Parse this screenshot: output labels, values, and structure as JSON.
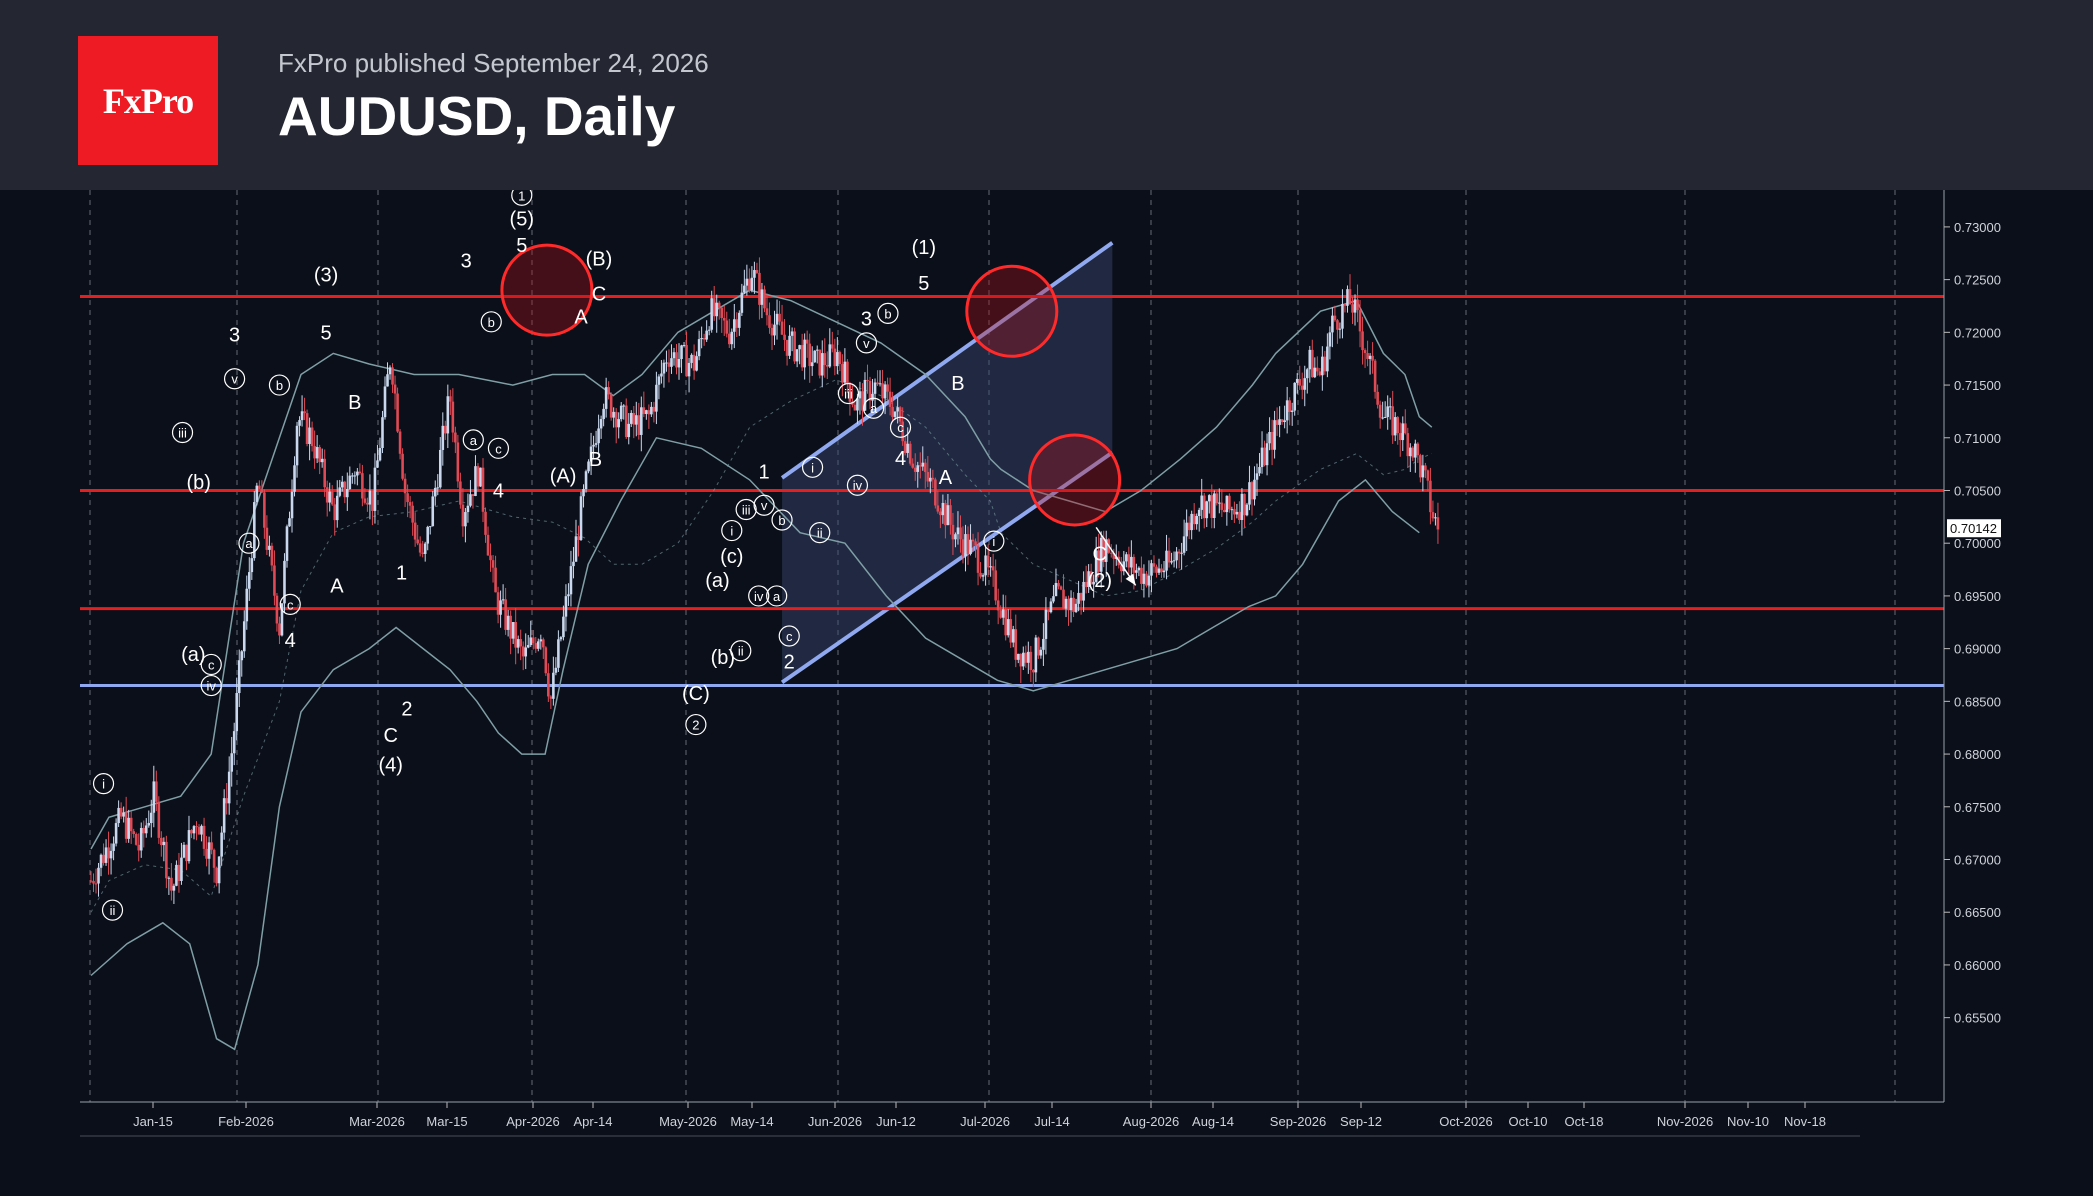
{
  "header": {
    "logo_text": "FxPro",
    "published": "FxPro published September 24, 2026",
    "title": "AUDUSD, Daily"
  },
  "colors": {
    "background": "#0b0f19",
    "header_bg": "#242731",
    "logo_red": "#ee1a24",
    "resistance_red": "#e31f1f",
    "channel_blue": "#8fa8ef",
    "bollinger": "#7f9ea6",
    "candle_up": "#c9d8ee",
    "candle_down": "#e04a55"
  },
  "chart_data": {
    "type": "candlestick",
    "symbol": "AUDUSD",
    "timeframe": "Daily",
    "ylim": [
      0.647,
      0.7335
    ],
    "y_ticks": [
      "0.73000",
      "0.72500",
      "0.72000",
      "0.71500",
      "0.71000",
      "0.70500",
      "0.70000",
      "0.69500",
      "0.69000",
      "0.68500",
      "0.68000",
      "0.67500",
      "0.67000",
      "0.66500",
      "0.66000",
      "0.65500"
    ],
    "current_price": "0.70142",
    "x_ticks": [
      "Jan-15",
      "Feb-2026",
      "Mar-2026",
      "Mar-15",
      "Apr-2026",
      "Apr-14",
      "May-2026",
      "May-14",
      "Jun-2026",
      "Jun-12",
      "Jul-2026",
      "Jul-14",
      "Aug-2026",
      "Aug-14",
      "Sep-2026",
      "Sep-12",
      "Oct-2026",
      "Oct-10",
      "Oct-18",
      "Nov-2026",
      "Nov-10",
      "Nov-18"
    ],
    "horizontal_levels": [
      {
        "price": 0.7234,
        "color": "red"
      },
      {
        "price": 0.705,
        "color": "red"
      },
      {
        "price": 0.6938,
        "color": "red"
      },
      {
        "price": 0.6865,
        "color": "blue"
      }
    ],
    "path": [
      [
        5,
        0.668
      ],
      [
        22,
        0.674
      ],
      [
        32,
        0.671
      ],
      [
        40,
        0.676
      ],
      [
        50,
        0.667
      ],
      [
        64,
        0.674
      ],
      [
        75,
        0.669
      ],
      [
        84,
        0.681
      ],
      [
        98,
        0.706
      ],
      [
        110,
        0.692
      ],
      [
        120,
        0.712
      ],
      [
        128,
        0.71
      ],
      [
        140,
        0.703
      ],
      [
        152,
        0.707
      ],
      [
        162,
        0.704
      ],
      [
        172,
        0.718
      ],
      [
        180,
        0.705
      ],
      [
        190,
        0.698
      ],
      [
        205,
        0.714
      ],
      [
        212,
        0.703
      ],
      [
        221,
        0.707
      ],
      [
        230,
        0.695
      ],
      [
        246,
        0.689
      ],
      [
        256,
        0.692
      ],
      [
        261,
        0.685
      ],
      [
        278,
        0.703
      ],
      [
        290,
        0.714
      ],
      [
        305,
        0.711
      ],
      [
        316,
        0.712
      ],
      [
        326,
        0.718
      ],
      [
        341,
        0.717
      ],
      [
        350,
        0.722
      ],
      [
        361,
        0.72
      ],
      [
        373,
        0.726
      ],
      [
        381,
        0.722
      ],
      [
        393,
        0.719
      ],
      [
        410,
        0.717
      ],
      [
        421,
        0.718
      ],
      [
        431,
        0.713
      ],
      [
        441,
        0.715
      ],
      [
        452,
        0.713
      ],
      [
        463,
        0.708
      ],
      [
        475,
        0.705
      ],
      [
        486,
        0.701
      ],
      [
        498,
        0.699
      ],
      [
        508,
        0.696
      ],
      [
        520,
        0.69
      ],
      [
        530,
        0.689
      ],
      [
        543,
        0.695
      ],
      [
        553,
        0.694
      ],
      [
        570,
        0.7
      ],
      [
        582,
        0.698
      ],
      [
        592,
        0.697
      ],
      [
        607,
        0.698
      ],
      [
        622,
        0.704
      ],
      [
        638,
        0.703
      ],
      [
        648,
        0.704
      ],
      [
        668,
        0.712
      ],
      [
        684,
        0.717
      ],
      [
        690,
        0.716
      ],
      [
        697,
        0.721
      ],
      [
        707,
        0.723
      ],
      [
        716,
        0.718
      ],
      [
        725,
        0.712
      ],
      [
        733,
        0.711
      ],
      [
        742,
        0.709
      ],
      [
        748,
        0.706
      ],
      [
        752,
        0.703
      ],
      [
        756,
        0.701
      ]
    ],
    "bands": {
      "upper": [
        [
          5,
          0.671
        ],
        [
          15,
          0.674
        ],
        [
          35,
          0.675
        ],
        [
          55,
          0.676
        ],
        [
          72,
          0.68
        ],
        [
          90,
          0.7
        ],
        [
          110,
          0.71
        ],
        [
          122,
          0.716
        ],
        [
          140,
          0.718
        ],
        [
          160,
          0.717
        ],
        [
          185,
          0.716
        ],
        [
          210,
          0.716
        ],
        [
          240,
          0.715
        ],
        [
          262,
          0.716
        ],
        [
          280,
          0.716
        ],
        [
          296,
          0.714
        ],
        [
          312,
          0.716
        ],
        [
          332,
          0.72
        ],
        [
          352,
          0.722
        ],
        [
          372,
          0.724
        ],
        [
          395,
          0.723
        ],
        [
          420,
          0.721
        ],
        [
          445,
          0.719
        ],
        [
          470,
          0.716
        ],
        [
          492,
          0.712
        ],
        [
          506,
          0.708
        ],
        [
          512,
          0.707
        ],
        [
          530,
          0.705
        ],
        [
          550,
          0.704
        ],
        [
          570,
          0.703
        ],
        [
          590,
          0.705
        ],
        [
          612,
          0.708
        ],
        [
          632,
          0.711
        ],
        [
          652,
          0.715
        ],
        [
          665,
          0.718
        ],
        [
          690,
          0.722
        ],
        [
          710,
          0.723
        ],
        [
          725,
          0.718
        ],
        [
          737,
          0.716
        ],
        [
          745,
          0.712
        ],
        [
          752,
          0.711
        ]
      ],
      "lower": [
        [
          5,
          0.659
        ],
        [
          25,
          0.662
        ],
        [
          45,
          0.664
        ],
        [
          60,
          0.662
        ],
        [
          75,
          0.653
        ],
        [
          85,
          0.652
        ],
        [
          98,
          0.66
        ],
        [
          110,
          0.675
        ],
        [
          122,
          0.684
        ],
        [
          140,
          0.688
        ],
        [
          160,
          0.69
        ],
        [
          175,
          0.692
        ],
        [
          190,
          0.69
        ],
        [
          205,
          0.688
        ],
        [
          220,
          0.685
        ],
        [
          232,
          0.682
        ],
        [
          245,
          0.68
        ],
        [
          258,
          0.68
        ],
        [
          268,
          0.688
        ],
        [
          282,
          0.698
        ],
        [
          300,
          0.704
        ],
        [
          320,
          0.71
        ],
        [
          345,
          0.709
        ],
        [
          372,
          0.706
        ],
        [
          400,
          0.701
        ],
        [
          425,
          0.7
        ],
        [
          448,
          0.695
        ],
        [
          470,
          0.691
        ],
        [
          490,
          0.689
        ],
        [
          510,
          0.687
        ],
        [
          530,
          0.686
        ],
        [
          550,
          0.687
        ],
        [
          570,
          0.688
        ],
        [
          590,
          0.689
        ],
        [
          610,
          0.69
        ],
        [
          630,
          0.692
        ],
        [
          650,
          0.694
        ],
        [
          665,
          0.695
        ],
        [
          680,
          0.698
        ],
        [
          700,
          0.704
        ],
        [
          715,
          0.706
        ],
        [
          730,
          0.703
        ],
        [
          745,
          0.701
        ]
      ]
    },
    "channel": {
      "upper": [
        [
          390,
          0.7062
        ],
        [
          574,
          0.7285
        ]
      ],
      "lower": [
        [
          390,
          0.6868
        ],
        [
          574,
          0.7086
        ]
      ],
      "fill_end": [
        [
          574,
          0.7285
        ],
        [
          574,
          0.7086
        ]
      ]
    },
    "forecast_arrow": [
      [
        565,
        0.7015
      ],
      [
        587,
        0.696
      ]
    ],
    "circles": [
      {
        "x": 259,
        "y": 0.724,
        "r": 36
      },
      {
        "x": 518,
        "y": 0.722,
        "r": 36
      },
      {
        "x": 553,
        "y": 0.706,
        "r": 36
      }
    ],
    "wave_labels": [
      {
        "text": "i",
        "x": 12,
        "y": 0.6772,
        "circled": true
      },
      {
        "text": "ii",
        "x": 17,
        "y": 0.6652,
        "circled": true
      },
      {
        "text": "iii",
        "x": 56,
        "y": 0.7105,
        "circled": true
      },
      {
        "text": "(b)",
        "x": 65,
        "y": 0.7058,
        "circled": false
      },
      {
        "text": "(a)",
        "x": 62,
        "y": 0.6895,
        "circled": false
      },
      {
        "text": "c",
        "x": 72,
        "y": 0.6885,
        "circled": true
      },
      {
        "text": "iv",
        "x": 72,
        "y": 0.6865,
        "circled": true
      },
      {
        "text": "3",
        "x": 85,
        "y": 0.7198,
        "circled": false
      },
      {
        "text": "v",
        "x": 85,
        "y": 0.7156,
        "circled": true
      },
      {
        "text": "b",
        "x": 110,
        "y": 0.715,
        "circled": true
      },
      {
        "text": "a",
        "x": 93,
        "y": 0.7,
        "circled": true
      },
      {
        "text": "(3)",
        "x": 136,
        "y": 0.7255,
        "circled": false
      },
      {
        "text": "5",
        "x": 136,
        "y": 0.72,
        "circled": false
      },
      {
        "text": "B",
        "x": 152,
        "y": 0.7134,
        "circled": false
      },
      {
        "text": "A",
        "x": 142,
        "y": 0.696,
        "circled": false
      },
      {
        "text": "c",
        "x": 116,
        "y": 0.6942,
        "circled": true
      },
      {
        "text": "4",
        "x": 116,
        "y": 0.6908,
        "circled": false
      },
      {
        "text": "1",
        "x": 178,
        "y": 0.6972,
        "circled": false
      },
      {
        "text": "2",
        "x": 181,
        "y": 0.6843,
        "circled": false
      },
      {
        "text": "C",
        "x": 172,
        "y": 0.6818,
        "circled": false
      },
      {
        "text": "(4)",
        "x": 172,
        "y": 0.679,
        "circled": false
      },
      {
        "text": "3",
        "x": 214,
        "y": 0.7268,
        "circled": false
      },
      {
        "text": "b",
        "x": 228,
        "y": 0.721,
        "circled": true
      },
      {
        "text": "a",
        "x": 218,
        "y": 0.7098,
        "circled": true
      },
      {
        "text": "c",
        "x": 232,
        "y": 0.709,
        "circled": true
      },
      {
        "text": "4",
        "x": 232,
        "y": 0.705,
        "circled": false
      },
      {
        "text": "1",
        "x": 245,
        "y": 0.733,
        "circled": true
      },
      {
        "text": "(5)",
        "x": 245,
        "y": 0.7308,
        "circled": false
      },
      {
        "text": "5",
        "x": 245,
        "y": 0.7283,
        "circled": false
      },
      {
        "text": "(B)",
        "x": 288,
        "y": 0.727,
        "circled": false
      },
      {
        "text": "C",
        "x": 288,
        "y": 0.7237,
        "circled": false
      },
      {
        "text": "A",
        "x": 278,
        "y": 0.7215,
        "circled": false
      },
      {
        "text": "B",
        "x": 286,
        "y": 0.708,
        "circled": false
      },
      {
        "text": "(A)",
        "x": 268,
        "y": 0.7064,
        "circled": false
      },
      {
        "text": "(C)",
        "x": 342,
        "y": 0.6858,
        "circled": false
      },
      {
        "text": "2",
        "x": 342,
        "y": 0.6828,
        "circled": true
      },
      {
        "text": "(a)",
        "x": 354,
        "y": 0.6965,
        "circled": false
      },
      {
        "text": "(b)",
        "x": 357,
        "y": 0.6892,
        "circled": false
      },
      {
        "text": "(c)",
        "x": 362,
        "y": 0.6988,
        "circled": false
      },
      {
        "text": "i",
        "x": 362,
        "y": 0.7012,
        "circled": true
      },
      {
        "text": "iii",
        "x": 370,
        "y": 0.7032,
        "circled": true
      },
      {
        "text": "ii",
        "x": 367,
        "y": 0.6898,
        "circled": true
      },
      {
        "text": "1",
        "x": 380,
        "y": 0.7068,
        "circled": false
      },
      {
        "text": "v",
        "x": 380,
        "y": 0.7036,
        "circled": true
      },
      {
        "text": "iv",
        "x": 377,
        "y": 0.695,
        "circled": true
      },
      {
        "text": "a",
        "x": 387,
        "y": 0.695,
        "circled": true
      },
      {
        "text": "b",
        "x": 390,
        "y": 0.7022,
        "circled": true
      },
      {
        "text": "c",
        "x": 394,
        "y": 0.6912,
        "circled": true
      },
      {
        "text": "2",
        "x": 394,
        "y": 0.6888,
        "circled": false
      },
      {
        "text": "i",
        "x": 407,
        "y": 0.7072,
        "circled": true
      },
      {
        "text": "ii",
        "x": 411,
        "y": 0.701,
        "circled": true
      },
      {
        "text": "iii",
        "x": 427,
        "y": 0.7142,
        "circled": true
      },
      {
        "text": "iv",
        "x": 432,
        "y": 0.7055,
        "circled": true
      },
      {
        "text": "a",
        "x": 441,
        "y": 0.7128,
        "circled": true
      },
      {
        "text": "3",
        "x": 437,
        "y": 0.7213,
        "circled": false
      },
      {
        "text": "v",
        "x": 437,
        "y": 0.719,
        "circled": true
      },
      {
        "text": "b",
        "x": 449,
        "y": 0.7218,
        "circled": true
      },
      {
        "text": "c",
        "x": 456,
        "y": 0.711,
        "circled": true
      },
      {
        "text": "4",
        "x": 456,
        "y": 0.7081,
        "circled": false
      },
      {
        "text": "(1)",
        "x": 469,
        "y": 0.7281,
        "circled": false
      },
      {
        "text": "5",
        "x": 469,
        "y": 0.7247,
        "circled": false
      },
      {
        "text": "B",
        "x": 488,
        "y": 0.7152,
        "circled": false
      },
      {
        "text": "A",
        "x": 481,
        "y": 0.7063,
        "circled": false
      },
      {
        "text": "i",
        "x": 508,
        "y": 0.7002,
        "circled": true
      },
      {
        "text": "C",
        "x": 567,
        "y": 0.699,
        "circled": false
      },
      {
        "text": "(2)",
        "x": 567,
        "y": 0.6965,
        "circled": false
      }
    ]
  }
}
